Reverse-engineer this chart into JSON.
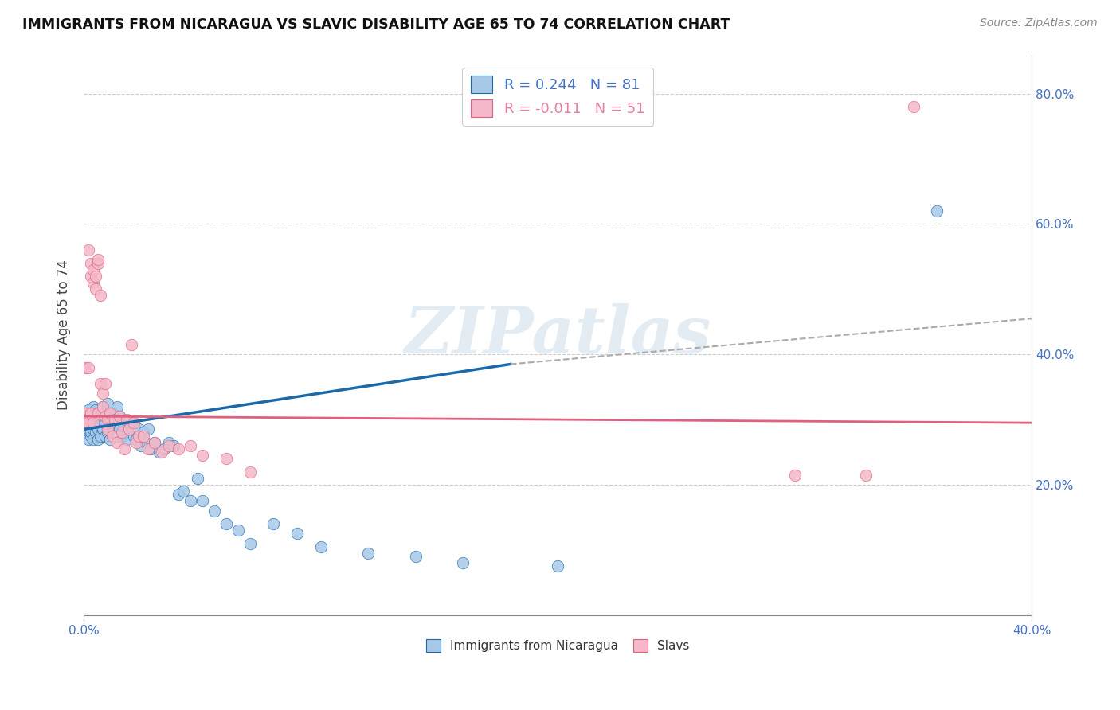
{
  "title": "IMMIGRANTS FROM NICARAGUA VS SLAVIC DISABILITY AGE 65 TO 74 CORRELATION CHART",
  "source": "Source: ZipAtlas.com",
  "ylabel": "Disability Age 65 to 74",
  "legend1_label": "R = 0.244   N = 81",
  "legend2_label": "R = -0.011   N = 51",
  "legend_bottom1": "Immigrants from Nicaragua",
  "legend_bottom2": "Slavs",
  "color_nicaragua": "#a8c8e8",
  "color_slavs": "#f4b8c8",
  "color_line_nicaragua": "#1a6aaa",
  "color_line_slavs": "#e06080",
  "color_dashed": "#aaaaaa",
  "xlim": [
    0.0,
    0.4
  ],
  "ylim": [
    0.0,
    0.86
  ],
  "x_ticks_show": [
    0.0,
    0.4
  ],
  "x_ticks_show_labels": [
    "0.0%",
    "40.0%"
  ],
  "y_ticks": [
    0.2,
    0.4,
    0.6,
    0.8
  ],
  "y_tick_labels": [
    "20.0%",
    "40.0%",
    "60.0%",
    "80.0%"
  ],
  "watermark": "ZIPatlas",
  "nic_line_x": [
    0.0,
    0.4
  ],
  "nic_line_y": [
    0.285,
    0.455
  ],
  "slav_line_x": [
    0.0,
    0.4
  ],
  "slav_line_y": [
    0.305,
    0.295
  ],
  "dashed_line_x": [
    0.18,
    0.4
  ],
  "dashed_line_y": [
    0.385,
    0.455
  ],
  "nicaragua_x": [
    0.001,
    0.001,
    0.001,
    0.001,
    0.002,
    0.002,
    0.002,
    0.002,
    0.002,
    0.003,
    0.003,
    0.003,
    0.003,
    0.004,
    0.004,
    0.004,
    0.004,
    0.004,
    0.005,
    0.005,
    0.005,
    0.005,
    0.006,
    0.006,
    0.006,
    0.007,
    0.007,
    0.007,
    0.008,
    0.008,
    0.008,
    0.009,
    0.009,
    0.01,
    0.01,
    0.01,
    0.011,
    0.011,
    0.012,
    0.012,
    0.013,
    0.013,
    0.014,
    0.014,
    0.015,
    0.015,
    0.016,
    0.017,
    0.018,
    0.019,
    0.02,
    0.021,
    0.022,
    0.023,
    0.024,
    0.025,
    0.026,
    0.027,
    0.028,
    0.03,
    0.032,
    0.034,
    0.036,
    0.038,
    0.04,
    0.042,
    0.045,
    0.048,
    0.05,
    0.055,
    0.06,
    0.065,
    0.07,
    0.08,
    0.09,
    0.1,
    0.12,
    0.14,
    0.16,
    0.2,
    0.36
  ],
  "nicaragua_y": [
    0.29,
    0.3,
    0.28,
    0.31,
    0.285,
    0.295,
    0.27,
    0.3,
    0.315,
    0.275,
    0.295,
    0.31,
    0.28,
    0.285,
    0.3,
    0.27,
    0.295,
    0.32,
    0.28,
    0.3,
    0.29,
    0.315,
    0.285,
    0.305,
    0.27,
    0.29,
    0.31,
    0.275,
    0.285,
    0.3,
    0.32,
    0.275,
    0.295,
    0.28,
    0.305,
    0.325,
    0.27,
    0.295,
    0.28,
    0.31,
    0.285,
    0.3,
    0.275,
    0.32,
    0.285,
    0.305,
    0.275,
    0.29,
    0.27,
    0.285,
    0.295,
    0.275,
    0.27,
    0.285,
    0.26,
    0.28,
    0.265,
    0.285,
    0.255,
    0.265,
    0.25,
    0.255,
    0.265,
    0.26,
    0.185,
    0.19,
    0.175,
    0.21,
    0.175,
    0.16,
    0.14,
    0.13,
    0.11,
    0.14,
    0.125,
    0.105,
    0.095,
    0.09,
    0.08,
    0.075,
    0.62
  ],
  "slavs_x": [
    0.001,
    0.001,
    0.001,
    0.002,
    0.002,
    0.002,
    0.003,
    0.003,
    0.003,
    0.004,
    0.004,
    0.004,
    0.005,
    0.005,
    0.006,
    0.006,
    0.006,
    0.007,
    0.007,
    0.008,
    0.008,
    0.009,
    0.009,
    0.01,
    0.01,
    0.011,
    0.012,
    0.013,
    0.014,
    0.015,
    0.016,
    0.017,
    0.018,
    0.019,
    0.02,
    0.021,
    0.022,
    0.023,
    0.025,
    0.027,
    0.03,
    0.033,
    0.036,
    0.04,
    0.045,
    0.05,
    0.06,
    0.07,
    0.3,
    0.33,
    0.35
  ],
  "slavs_y": [
    0.295,
    0.38,
    0.31,
    0.56,
    0.38,
    0.295,
    0.52,
    0.54,
    0.31,
    0.51,
    0.53,
    0.295,
    0.5,
    0.52,
    0.54,
    0.545,
    0.31,
    0.49,
    0.355,
    0.34,
    0.32,
    0.355,
    0.305,
    0.3,
    0.285,
    0.31,
    0.275,
    0.3,
    0.265,
    0.305,
    0.28,
    0.255,
    0.3,
    0.285,
    0.415,
    0.295,
    0.265,
    0.275,
    0.275,
    0.255,
    0.265,
    0.25,
    0.26,
    0.255,
    0.26,
    0.245,
    0.24,
    0.22,
    0.215,
    0.215,
    0.78
  ]
}
